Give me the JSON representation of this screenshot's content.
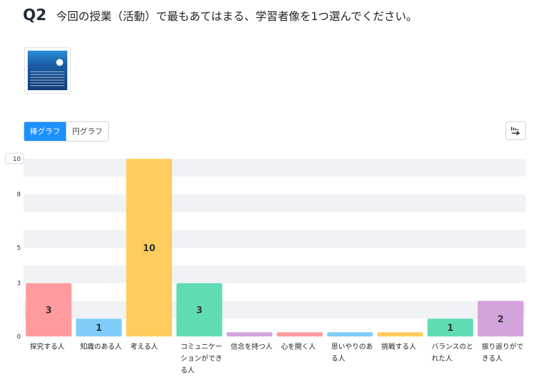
{
  "question": {
    "number": "Q2",
    "text": "今回の授業（活動）で最もあてはまる、学習者像を1つ選んでください。"
  },
  "thumbnail": {
    "icon": "document-thumbnail-icon"
  },
  "chart_toggle": {
    "bar_label": "棒グラフ",
    "pie_label": "円グラフ",
    "active": "bar"
  },
  "export": {
    "icon": "export-icon"
  },
  "chart_data": {
    "type": "bar",
    "categories": [
      "探究する人",
      "知識のある人",
      "考える人",
      "コミュニケーションができる人",
      "信念を持つ人",
      "心を開く人",
      "思いやりのある人",
      "挑戦する人",
      "バランスのとれた人",
      "振り返りができる人"
    ],
    "category_lines": [
      [
        "探究する人"
      ],
      [
        "知識のある人"
      ],
      [
        "考える人"
      ],
      [
        "コミュニケー",
        "ションができ",
        "る人"
      ],
      [
        "信念を持つ人"
      ],
      [
        "心を開く人"
      ],
      [
        "思いやりのあ",
        "る人"
      ],
      [
        "挑戦する人"
      ],
      [
        "バランスのと",
        "れた人"
      ],
      [
        "振り返りがで",
        "きる人"
      ]
    ],
    "values": [
      3,
      1,
      10,
      3,
      0,
      0,
      0,
      0,
      1,
      2
    ],
    "colors": [
      "#ff9a9e",
      "#7fcdf9",
      "#ffcd5e",
      "#5fdcb3",
      "#d3a3dc",
      "#ff9a9e",
      "#7fcdf9",
      "#ffcd5e",
      "#5fdcb3",
      "#d3a3dc"
    ],
    "yticks": [
      0,
      3,
      5,
      8,
      10
    ],
    "ylim": [
      0,
      10
    ],
    "grid": true,
    "title": "",
    "xlabel": "",
    "ylabel": ""
  }
}
